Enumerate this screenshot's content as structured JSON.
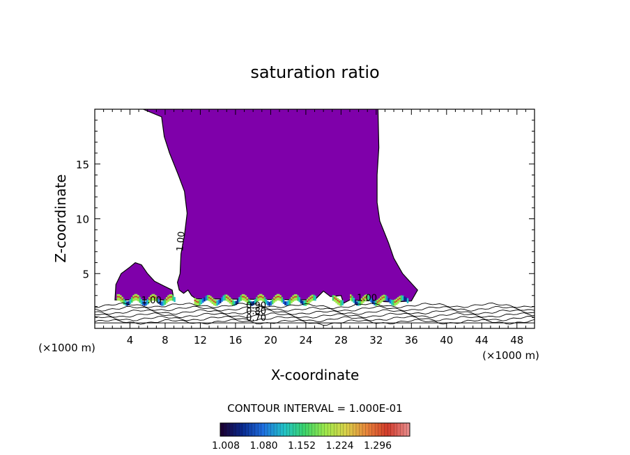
{
  "chart_data": {
    "type": "contour",
    "title": "saturation ratio",
    "xlabel": "X-coordinate",
    "ylabel": "Z-coordinate",
    "x_unit_left": "(×1000 m)",
    "x_unit_right": "(×1000 m)",
    "xlim": [
      0,
      50
    ],
    "ylim": [
      0,
      20
    ],
    "x_ticks": [
      4,
      8,
      12,
      16,
      20,
      24,
      28,
      32,
      36,
      40,
      44,
      48
    ],
    "y_ticks": [
      5,
      10,
      15
    ],
    "contour_interval_text": "CONTOUR INTERVAL = 1.000E-01",
    "contour_labels": [
      {
        "text": "1.00",
        "x": 10.0,
        "z": 7.0
      },
      {
        "text": "1.00",
        "x": 5.3,
        "z": 2.3
      },
      {
        "text": "1.00",
        "x": 29.8,
        "z": 2.5
      },
      {
        "text": "0.90",
        "x": 17.2,
        "z": 1.8
      },
      {
        "text": "0.80",
        "x": 17.2,
        "z": 1.3
      },
      {
        "text": "0.70",
        "x": 17.2,
        "z": 0.7
      }
    ],
    "colorbar": {
      "tick_labels": [
        "1.008",
        "1.080",
        "1.152",
        "1.224",
        "1.296"
      ],
      "colors": [
        "#1a0033",
        "#0a2a8f",
        "#1e6fe0",
        "#22c2c8",
        "#3cd46a",
        "#9ee84a",
        "#d9d24a",
        "#e8843a",
        "#d23a2a",
        "#e88a8a"
      ]
    },
    "fill_color": "#7f00aa",
    "main_region_boundary": [
      [
        5.5,
        20
      ],
      [
        7.6,
        19.3
      ],
      [
        7.9,
        17.5
      ],
      [
        8.5,
        16
      ],
      [
        9.5,
        14
      ],
      [
        10.2,
        12.5
      ],
      [
        10.5,
        10.5
      ],
      [
        10.2,
        8.5
      ],
      [
        9.8,
        6.8
      ],
      [
        9.7,
        5.0
      ],
      [
        9.4,
        4.2
      ],
      [
        9.6,
        3.5
      ],
      [
        10.1,
        3.2
      ],
      [
        10.6,
        3.5
      ],
      [
        11.0,
        3.0
      ],
      [
        11.5,
        2.7
      ],
      [
        25.0,
        2.6
      ],
      [
        26.0,
        3.4
      ],
      [
        26.8,
        2.9
      ],
      [
        28.0,
        3.0
      ],
      [
        28.3,
        2.3
      ],
      [
        29.0,
        2.6
      ],
      [
        34.0,
        2.4
      ],
      [
        36.0,
        2.5
      ],
      [
        36.7,
        3.5
      ],
      [
        35.0,
        5.0
      ],
      [
        34.0,
        6.4
      ],
      [
        33.4,
        7.8
      ],
      [
        32.4,
        9.8
      ],
      [
        32.1,
        11.5
      ],
      [
        32.1,
        14.0
      ],
      [
        32.3,
        16.5
      ],
      [
        32.2,
        20
      ]
    ],
    "left_region_boundary": [
      [
        2.3,
        2.6
      ],
      [
        2.4,
        4.0
      ],
      [
        3.0,
        5.0
      ],
      [
        4.0,
        5.6
      ],
      [
        4.6,
        6.0
      ],
      [
        5.3,
        5.8
      ],
      [
        6.0,
        5.0
      ],
      [
        6.8,
        4.3
      ],
      [
        7.8,
        3.9
      ],
      [
        8.8,
        3.5
      ],
      [
        9.0,
        2.6
      ]
    ],
    "lower_contours_z": [
      0.6,
      0.9,
      1.2,
      1.5,
      1.8,
      2.1
    ]
  }
}
